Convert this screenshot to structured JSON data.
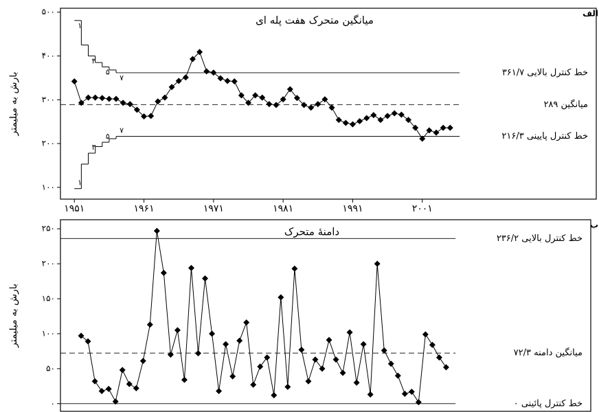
{
  "chart_data": [
    {
      "type": "line",
      "panel_label": "الف",
      "title": "میانگین متحرک هفت پله ای",
      "ylabel": "بارش به میلیمتر",
      "color": "#000000",
      "x": [
        1951,
        1952,
        1953,
        1954,
        1955,
        1956,
        1957,
        1958,
        1959,
        1960,
        1961,
        1962,
        1963,
        1964,
        1965,
        1966,
        1967,
        1968,
        1969,
        1970,
        1971,
        1972,
        1973,
        1974,
        1975,
        1976,
        1977,
        1978,
        1979,
        1980,
        1981,
        1982,
        1983,
        1984,
        1985,
        1986,
        1987,
        1988,
        1989,
        1990,
        1991,
        1992,
        1993,
        1994,
        1995,
        1996,
        1997,
        1998,
        1999,
        2000,
        2001,
        2002,
        2003,
        2004,
        2005
      ],
      "values": [
        342,
        293,
        305,
        305,
        304,
        302,
        302,
        293,
        290,
        277,
        262,
        263,
        296,
        305,
        329,
        343,
        351,
        393,
        409,
        365,
        362,
        349,
        343,
        342,
        310,
        293,
        310,
        305,
        290,
        288,
        301,
        324,
        304,
        288,
        282,
        290,
        301,
        282,
        254,
        247,
        244,
        251,
        258,
        265,
        254,
        263,
        269,
        266,
        254,
        236,
        211,
        230,
        225,
        236,
        236
      ],
      "xlim": [
        1949,
        2026
      ],
      "ylim": [
        73,
        509
      ],
      "xticks": [
        {
          "value": 1951,
          "label": "۱۹۵۱"
        },
        {
          "value": 1961,
          "label": "۱۹۶۱"
        },
        {
          "value": 1971,
          "label": "۱۹۷۱"
        },
        {
          "value": 1981,
          "label": "۱۹۸۱"
        },
        {
          "value": 1991,
          "label": "۱۹۹۱"
        },
        {
          "value": 2001,
          "label": "۲۰۰۱"
        }
      ],
      "yticks": [
        {
          "value": 100,
          "label": "۱۰۰"
        },
        {
          "value": 200,
          "label": "۲۰۰"
        },
        {
          "value": 300,
          "label": "۳۰۰"
        },
        {
          "value": 400,
          "label": "۴۰۰"
        },
        {
          "value": 500,
          "label": "۵۰۰"
        }
      ],
      "upper_steps": [
        481,
        425,
        400,
        385,
        375,
        368
      ],
      "lower_steps": [
        97,
        153,
        178,
        193,
        203,
        211
      ],
      "step_labels": [
        {
          "value": 1,
          "label": "۱"
        },
        {
          "value": 3,
          "label": "۳"
        },
        {
          "value": 5,
          "label": "۵"
        },
        {
          "value": 7,
          "label": "۷"
        }
      ],
      "reference_lines": [
        {
          "value": 361.7,
          "label": "خط کنترل بالایی ۳۶۱/۷",
          "dashed": false,
          "steps": "upper"
        },
        {
          "value": 289,
          "label": "میانگین ۲۸۹",
          "dashed": true
        },
        {
          "value": 216.3,
          "label": "خط کنترل پایینی ۲۱۶/۳",
          "dashed": false,
          "steps": "lower"
        }
      ]
    },
    {
      "type": "line",
      "panel_label": "ب",
      "title": "دامنهٔ متحرک",
      "ylabel": "بارش به میلیمتر",
      "color": "#000000",
      "x": [
        1952,
        1953,
        1954,
        1955,
        1956,
        1957,
        1958,
        1959,
        1960,
        1961,
        1962,
        1963,
        1964,
        1965,
        1966,
        1967,
        1968,
        1969,
        1970,
        1971,
        1972,
        1973,
        1974,
        1975,
        1976,
        1977,
        1978,
        1979,
        1980,
        1981,
        1982,
        1983,
        1984,
        1985,
        1986,
        1987,
        1988,
        1989,
        1990,
        1991,
        1992,
        1993,
        1994,
        1995,
        1996,
        1997,
        1998,
        1999,
        2000,
        2001,
        2002,
        2003,
        2004,
        2005
      ],
      "values": [
        97,
        89,
        32,
        18,
        21,
        3,
        48,
        28,
        22,
        61,
        113,
        247,
        187,
        70,
        105,
        34,
        194,
        72,
        179,
        100,
        18,
        85,
        39,
        90,
        116,
        27,
        53,
        66,
        12,
        152,
        24,
        193,
        77,
        32,
        63,
        50,
        91,
        63,
        44,
        102,
        30,
        85,
        13,
        200,
        76,
        57,
        40,
        14,
        17,
        2,
        99,
        84,
        66,
        52
      ],
      "xlim": [
        1949,
        2026
      ],
      "ylim": [
        -11,
        263
      ],
      "yticks": [
        {
          "value": 0,
          "label": "۰"
        },
        {
          "value": 50,
          "label": "۵۰"
        },
        {
          "value": 100,
          "label": "۱۰۰"
        },
        {
          "value": 150,
          "label": "۱۵۰"
        },
        {
          "value": 200,
          "label": "۲۰۰"
        },
        {
          "value": 250,
          "label": "۲۵۰"
        }
      ],
      "reference_lines": [
        {
          "value": 236.2,
          "label": "خط کنترل بالایی ۲۳۶/۲",
          "dashed": false
        },
        {
          "value": 72.3,
          "label": "میانگین دامنه ۷۲/۳",
          "dashed": true
        },
        {
          "value": 0,
          "label": "خط کنترل پائینی ۰",
          "dashed": false
        }
      ]
    }
  ]
}
